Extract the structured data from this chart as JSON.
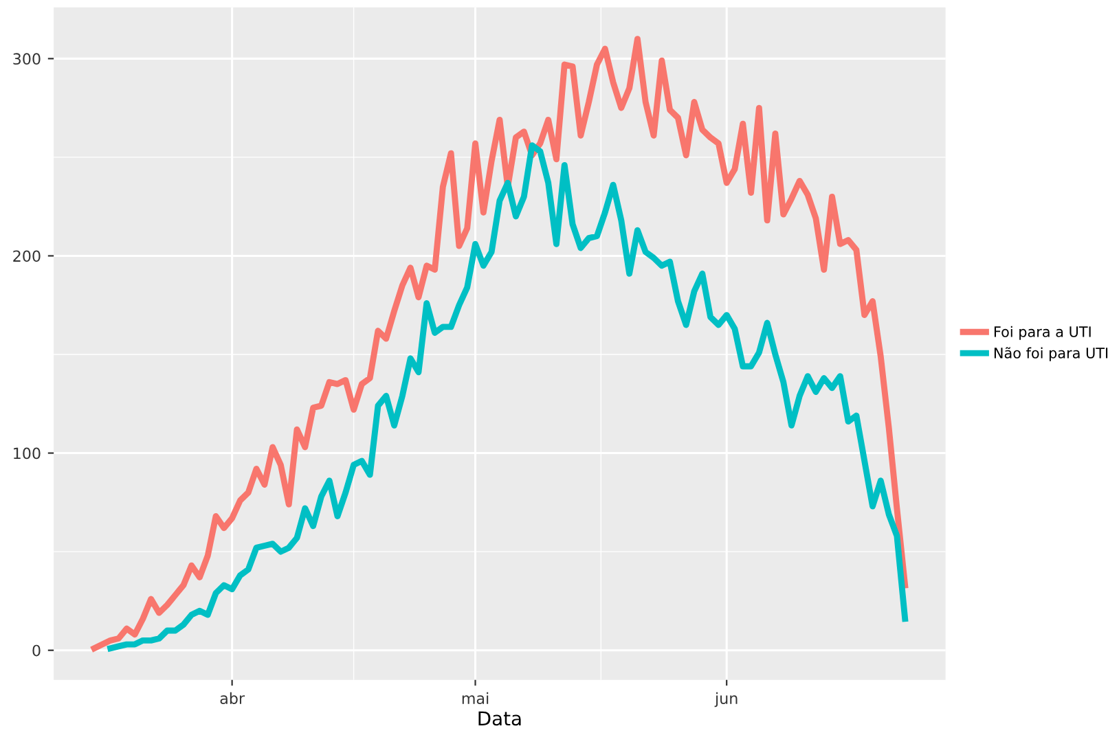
{
  "chart_data": {
    "type": "line",
    "xlabel": "Data",
    "categories": [
      null,
      null,
      null,
      null,
      null,
      null,
      null,
      null,
      null,
      null,
      null,
      null,
      null,
      null,
      null,
      null,
      null,
      "abr",
      null,
      null,
      null,
      null,
      null,
      null,
      null,
      null,
      null,
      null,
      null,
      null,
      null,
      null,
      null,
      null,
      null,
      null,
      null,
      null,
      null,
      null,
      null,
      null,
      null,
      null,
      null,
      null,
      null,
      "mai",
      null,
      null,
      null,
      null,
      null,
      null,
      null,
      null,
      null,
      null,
      null,
      null,
      null,
      null,
      null,
      null,
      null,
      null,
      null,
      null,
      null,
      null,
      null,
      null,
      null,
      null,
      null,
      null,
      null,
      null,
      "jun",
      null,
      null,
      null,
      null,
      null,
      null,
      null,
      null,
      null,
      null,
      null,
      null,
      null,
      null,
      null,
      null,
      null,
      null,
      null,
      null,
      null,
      null
    ],
    "ylim": [
      -15,
      326
    ],
    "yticks": [
      0,
      100,
      200,
      300
    ],
    "grid": true,
    "legend": "right",
    "line_style": "solid",
    "marker": "none",
    "series": [
      {
        "name": "Foi para a UTI",
        "color": "#f8766d",
        "values": [
          1,
          3,
          5,
          6,
          11,
          8,
          16,
          26,
          19,
          23,
          28,
          33,
          43,
          37,
          48,
          68,
          62,
          67,
          76,
          80,
          92,
          84,
          103,
          94,
          74,
          112,
          103,
          123,
          124,
          136,
          135,
          137,
          122,
          135,
          138,
          162,
          158,
          172,
          185,
          194,
          179,
          195,
          193,
          235,
          252,
          205,
          214,
          257,
          222,
          248,
          269,
          235,
          260,
          263,
          251,
          257,
          269,
          249,
          297,
          296,
          261,
          278,
          297,
          305,
          288,
          275,
          285,
          310,
          278,
          261,
          299,
          274,
          270,
          251,
          278,
          264,
          260,
          257,
          237,
          244,
          267,
          232,
          275,
          218,
          262,
          221,
          229,
          238,
          231,
          219,
          193,
          230,
          206,
          208,
          203,
          170,
          177,
          149,
          113,
          72,
          33
        ]
      },
      {
        "name": "Não foi para UTI",
        "color": "#00bfc4",
        "values": [
          null,
          null,
          1,
          2,
          3,
          3,
          5,
          5,
          6,
          10,
          10,
          13,
          18,
          20,
          18,
          29,
          33,
          31,
          38,
          41,
          52,
          53,
          54,
          50,
          52,
          57,
          72,
          63,
          78,
          86,
          68,
          80,
          94,
          96,
          89,
          124,
          129,
          114,
          129,
          148,
          141,
          176,
          161,
          164,
          164,
          175,
          184,
          206,
          195,
          202,
          228,
          237,
          220,
          230,
          256,
          253,
          237,
          206,
          246,
          216,
          204,
          209,
          210,
          222,
          236,
          218,
          191,
          213,
          202,
          199,
          195,
          197,
          177,
          165,
          182,
          191,
          169,
          165,
          170,
          163,
          144,
          144,
          151,
          166,
          150,
          136,
          114,
          129,
          139,
          131,
          138,
          133,
          139,
          116,
          119,
          96,
          73,
          86,
          69,
          58,
          16
        ]
      }
    ]
  }
}
